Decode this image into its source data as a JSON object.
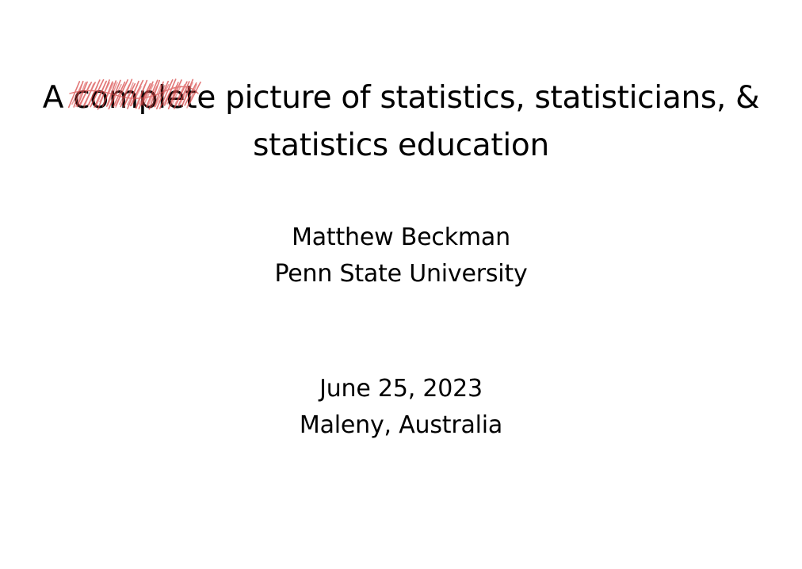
{
  "slide": {
    "title": {
      "prefix": "A ",
      "struck_word": "complete",
      "line1_rest": " picture of statistics, statisticians, &",
      "line2": "statistics education",
      "scribble_color": "#d94a4a"
    },
    "author": {
      "name": "Matthew Beckman",
      "affiliation": "Penn State University"
    },
    "event": {
      "date": "June 25, 2023",
      "location": "Maleny, Australia"
    }
  }
}
